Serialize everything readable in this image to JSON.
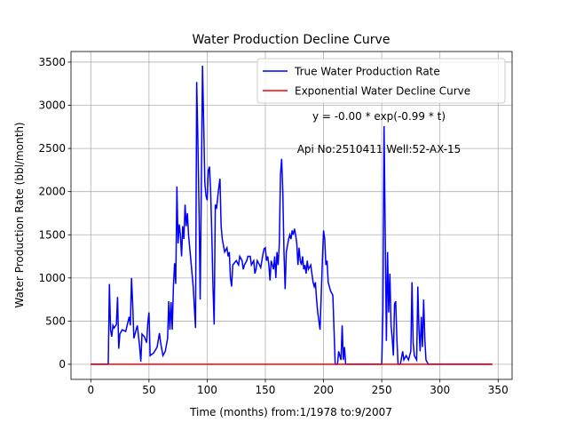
{
  "chart_data": {
    "type": "line",
    "title": "Water Production Decline Curve",
    "x_label": "Time (months) from:1/1978 to:9/2007",
    "y_label": "Water Production Rate (bbl/month)",
    "annotations": [
      "y = -0.00 * exp(-0.99 * t)",
      "Api No:2510411  Well:52-AX-15"
    ],
    "xlim": [
      -17,
      362
    ],
    "ylim": [
      -175,
      3623
    ],
    "xticks": [
      0,
      50,
      100,
      150,
      200,
      250,
      300,
      350
    ],
    "yticks": [
      0,
      500,
      1000,
      1500,
      2000,
      2500,
      3000,
      3500
    ],
    "grid": true,
    "legend": "upper right",
    "series": [
      {
        "name": "True Water Production Rate",
        "color": "#0000ff",
        "x": [
          0,
          15,
          16,
          17,
          18,
          19,
          20,
          22,
          23,
          24,
          25,
          27,
          30,
          33,
          34,
          35,
          36,
          37,
          40,
          42,
          43,
          44,
          46,
          48,
          49,
          50,
          51,
          54,
          57,
          59,
          60,
          62,
          64,
          66,
          67,
          68,
          69,
          70,
          71,
          72,
          73,
          74,
          75,
          76,
          77,
          78,
          79,
          80,
          81,
          82,
          83,
          84,
          86,
          88,
          90,
          91,
          92,
          93,
          94,
          96,
          97,
          98,
          99,
          100,
          101,
          102,
          103,
          104,
          105,
          106,
          107,
          108,
          110,
          111,
          112,
          113,
          115,
          117,
          118,
          119,
          120,
          121,
          122,
          125,
          127,
          128,
          130,
          131,
          132,
          134,
          135,
          137,
          138,
          140,
          141,
          142,
          143,
          145,
          146,
          148,
          149,
          150,
          151,
          152,
          153,
          154,
          155,
          156,
          157,
          158,
          159,
          160,
          161,
          162,
          163,
          164,
          165,
          166,
          167,
          168,
          170,
          171,
          172,
          173,
          174,
          175,
          176,
          177,
          178,
          179,
          180,
          181,
          182,
          183,
          184,
          185,
          186,
          187,
          189,
          190,
          191,
          192,
          193,
          194,
          195,
          196,
          197,
          198,
          199,
          200,
          201,
          202,
          203,
          204,
          205,
          206,
          208,
          209,
          210,
          212,
          213,
          214,
          215,
          216,
          217,
          218,
          219,
          250,
          251,
          252,
          253,
          254,
          255,
          256,
          257,
          258,
          259,
          260,
          261,
          262,
          263,
          264,
          266,
          268,
          269,
          271,
          273,
          275,
          276,
          277,
          278,
          280,
          281,
          282,
          283,
          284,
          285,
          286,
          287,
          288,
          290,
          345
        ],
        "values": [
          0,
          0,
          930,
          400,
          320,
          450,
          420,
          460,
          780,
          180,
          350,
          400,
          380,
          550,
          450,
          1000,
          700,
          300,
          450,
          200,
          30,
          350,
          320,
          250,
          480,
          600,
          100,
          130,
          200,
          360,
          250,
          100,
          150,
          300,
          730,
          400,
          720,
          400,
          900,
          1170,
          930,
          2060,
          1400,
          1620,
          1500,
          1250,
          1600,
          1450,
          1850,
          1600,
          1750,
          1500,
          1200,
          900,
          420,
          3270,
          2600,
          1800,
          750,
          3460,
          2800,
          2100,
          1950,
          1900,
          2250,
          2290,
          2000,
          1500,
          900,
          460,
          1850,
          1800,
          2050,
          2150,
          1600,
          1450,
          1300,
          1350,
          1250,
          1300,
          1000,
          900,
          1150,
          1200,
          1150,
          1250,
          1200,
          1100,
          1150,
          1200,
          1250,
          1250,
          1150,
          1200,
          1050,
          1100,
          1200,
          1150,
          1120,
          1280,
          1340,
          1350,
          1200,
          1250,
          1150,
          970,
          1200,
          1150,
          1100,
          1250,
          1000,
          1300,
          1150,
          1400,
          2200,
          2380,
          2000,
          1300,
          870,
          1300,
          1450,
          1500,
          1450,
          1550,
          1500,
          1570,
          1500,
          1400,
          1150,
          1350,
          1200,
          1150,
          1250,
          1100,
          1150,
          1050,
          1200,
          1100,
          1150,
          1050,
          950,
          900,
          950,
          750,
          600,
          500,
          400,
          800,
          1200,
          1550,
          1450,
          1150,
          1200,
          950,
          900,
          850,
          800,
          400,
          0,
          0,
          150,
          100,
          50,
          450,
          50,
          200,
          0,
          0,
          600,
          2760,
          1500,
          270,
          1300,
          600,
          1050,
          450,
          300,
          100,
          700,
          730,
          300,
          0,
          0,
          150,
          50,
          100,
          50,
          150,
          950,
          250,
          100,
          50,
          900,
          400,
          150,
          550,
          200,
          750,
          300,
          50,
          0,
          0
        ]
      },
      {
        "name": "Exponential Water Decline Curve",
        "color": "#ff0000",
        "x": [
          0,
          345
        ],
        "values": [
          0,
          0
        ]
      }
    ]
  }
}
